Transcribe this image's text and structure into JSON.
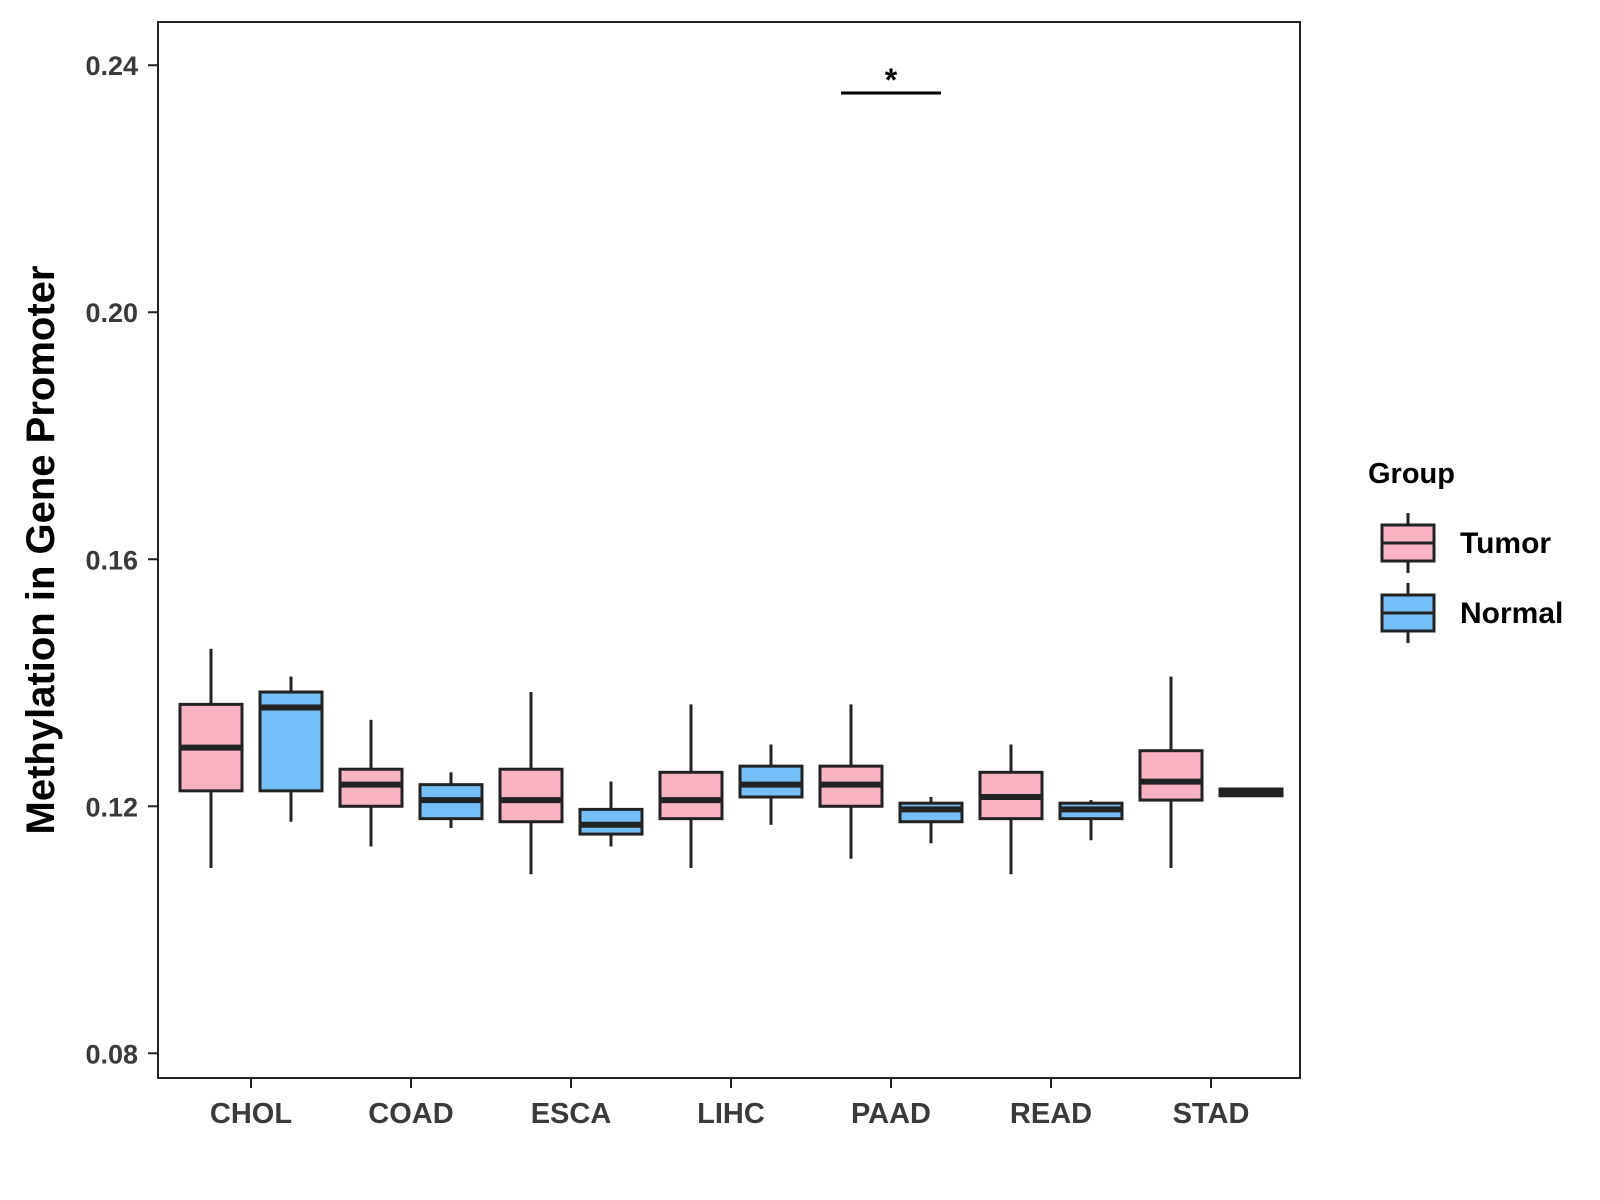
{
  "chart_data": {
    "type": "boxplot",
    "title": "",
    "xlabel": "",
    "ylabel": "Methylation in Gene Promoter",
    "ylim": [
      0.076,
      0.247
    ],
    "yticks": [
      {
        "value": 0.08,
        "label": "0.08"
      },
      {
        "value": 0.12,
        "label": "0.12"
      },
      {
        "value": 0.16,
        "label": "0.16"
      },
      {
        "value": 0.2,
        "label": "0.20"
      },
      {
        "value": 0.24,
        "label": "0.24"
      }
    ],
    "categories": [
      "CHOL",
      "COAD",
      "ESCA",
      "LIHC",
      "PAAD",
      "READ",
      "STAD"
    ],
    "grid": false,
    "legend": {
      "title": "Group",
      "position": "right",
      "items": [
        {
          "name": "Tumor",
          "color": "#f9b2c2"
        },
        {
          "name": "Normal",
          "color": "#74bff8"
        }
      ]
    },
    "series": [
      {
        "name": "Tumor",
        "color": "#f9b2c2",
        "boxes": [
          {
            "category": "CHOL",
            "min": 0.11,
            "q1": 0.1225,
            "median": 0.1295,
            "q3": 0.1365,
            "max": 0.1455
          },
          {
            "category": "COAD",
            "min": 0.1135,
            "q1": 0.12,
            "median": 0.1235,
            "q3": 0.126,
            "max": 0.134
          },
          {
            "category": "ESCA",
            "min": 0.109,
            "q1": 0.1175,
            "median": 0.121,
            "q3": 0.126,
            "max": 0.1385
          },
          {
            "category": "LIHC",
            "min": 0.11,
            "q1": 0.118,
            "median": 0.121,
            "q3": 0.1255,
            "max": 0.1365
          },
          {
            "category": "PAAD",
            "min": 0.1115,
            "q1": 0.12,
            "median": 0.1235,
            "q3": 0.1265,
            "max": 0.1365
          },
          {
            "category": "READ",
            "min": 0.109,
            "q1": 0.118,
            "median": 0.1215,
            "q3": 0.1255,
            "max": 0.13
          },
          {
            "category": "STAD",
            "min": 0.11,
            "q1": 0.121,
            "median": 0.124,
            "q3": 0.129,
            "max": 0.141
          }
        ]
      },
      {
        "name": "Normal",
        "color": "#74bff8",
        "boxes": [
          {
            "category": "CHOL",
            "min": 0.1175,
            "q1": 0.1225,
            "median": 0.136,
            "q3": 0.1385,
            "max": 0.141
          },
          {
            "category": "COAD",
            "min": 0.1165,
            "q1": 0.118,
            "median": 0.121,
            "q3": 0.1235,
            "max": 0.1255
          },
          {
            "category": "ESCA",
            "min": 0.1135,
            "q1": 0.1155,
            "median": 0.117,
            "q3": 0.1195,
            "max": 0.124
          },
          {
            "category": "LIHC",
            "min": 0.117,
            "q1": 0.1215,
            "median": 0.1235,
            "q3": 0.1265,
            "max": 0.13
          },
          {
            "category": "PAAD",
            "min": 0.114,
            "q1": 0.1175,
            "median": 0.1195,
            "q3": 0.1205,
            "max": 0.1215
          },
          {
            "category": "READ",
            "min": 0.1145,
            "q1": 0.118,
            "median": 0.1195,
            "q3": 0.1205,
            "max": 0.121
          },
          {
            "category": "STAD",
            "min": 0.1215,
            "q1": 0.1217,
            "median": 0.1223,
            "q3": 0.1228,
            "max": 0.123
          }
        ]
      }
    ],
    "annotations": [
      {
        "category": "PAAD",
        "text": "*",
        "y": 0.2355
      }
    ]
  }
}
